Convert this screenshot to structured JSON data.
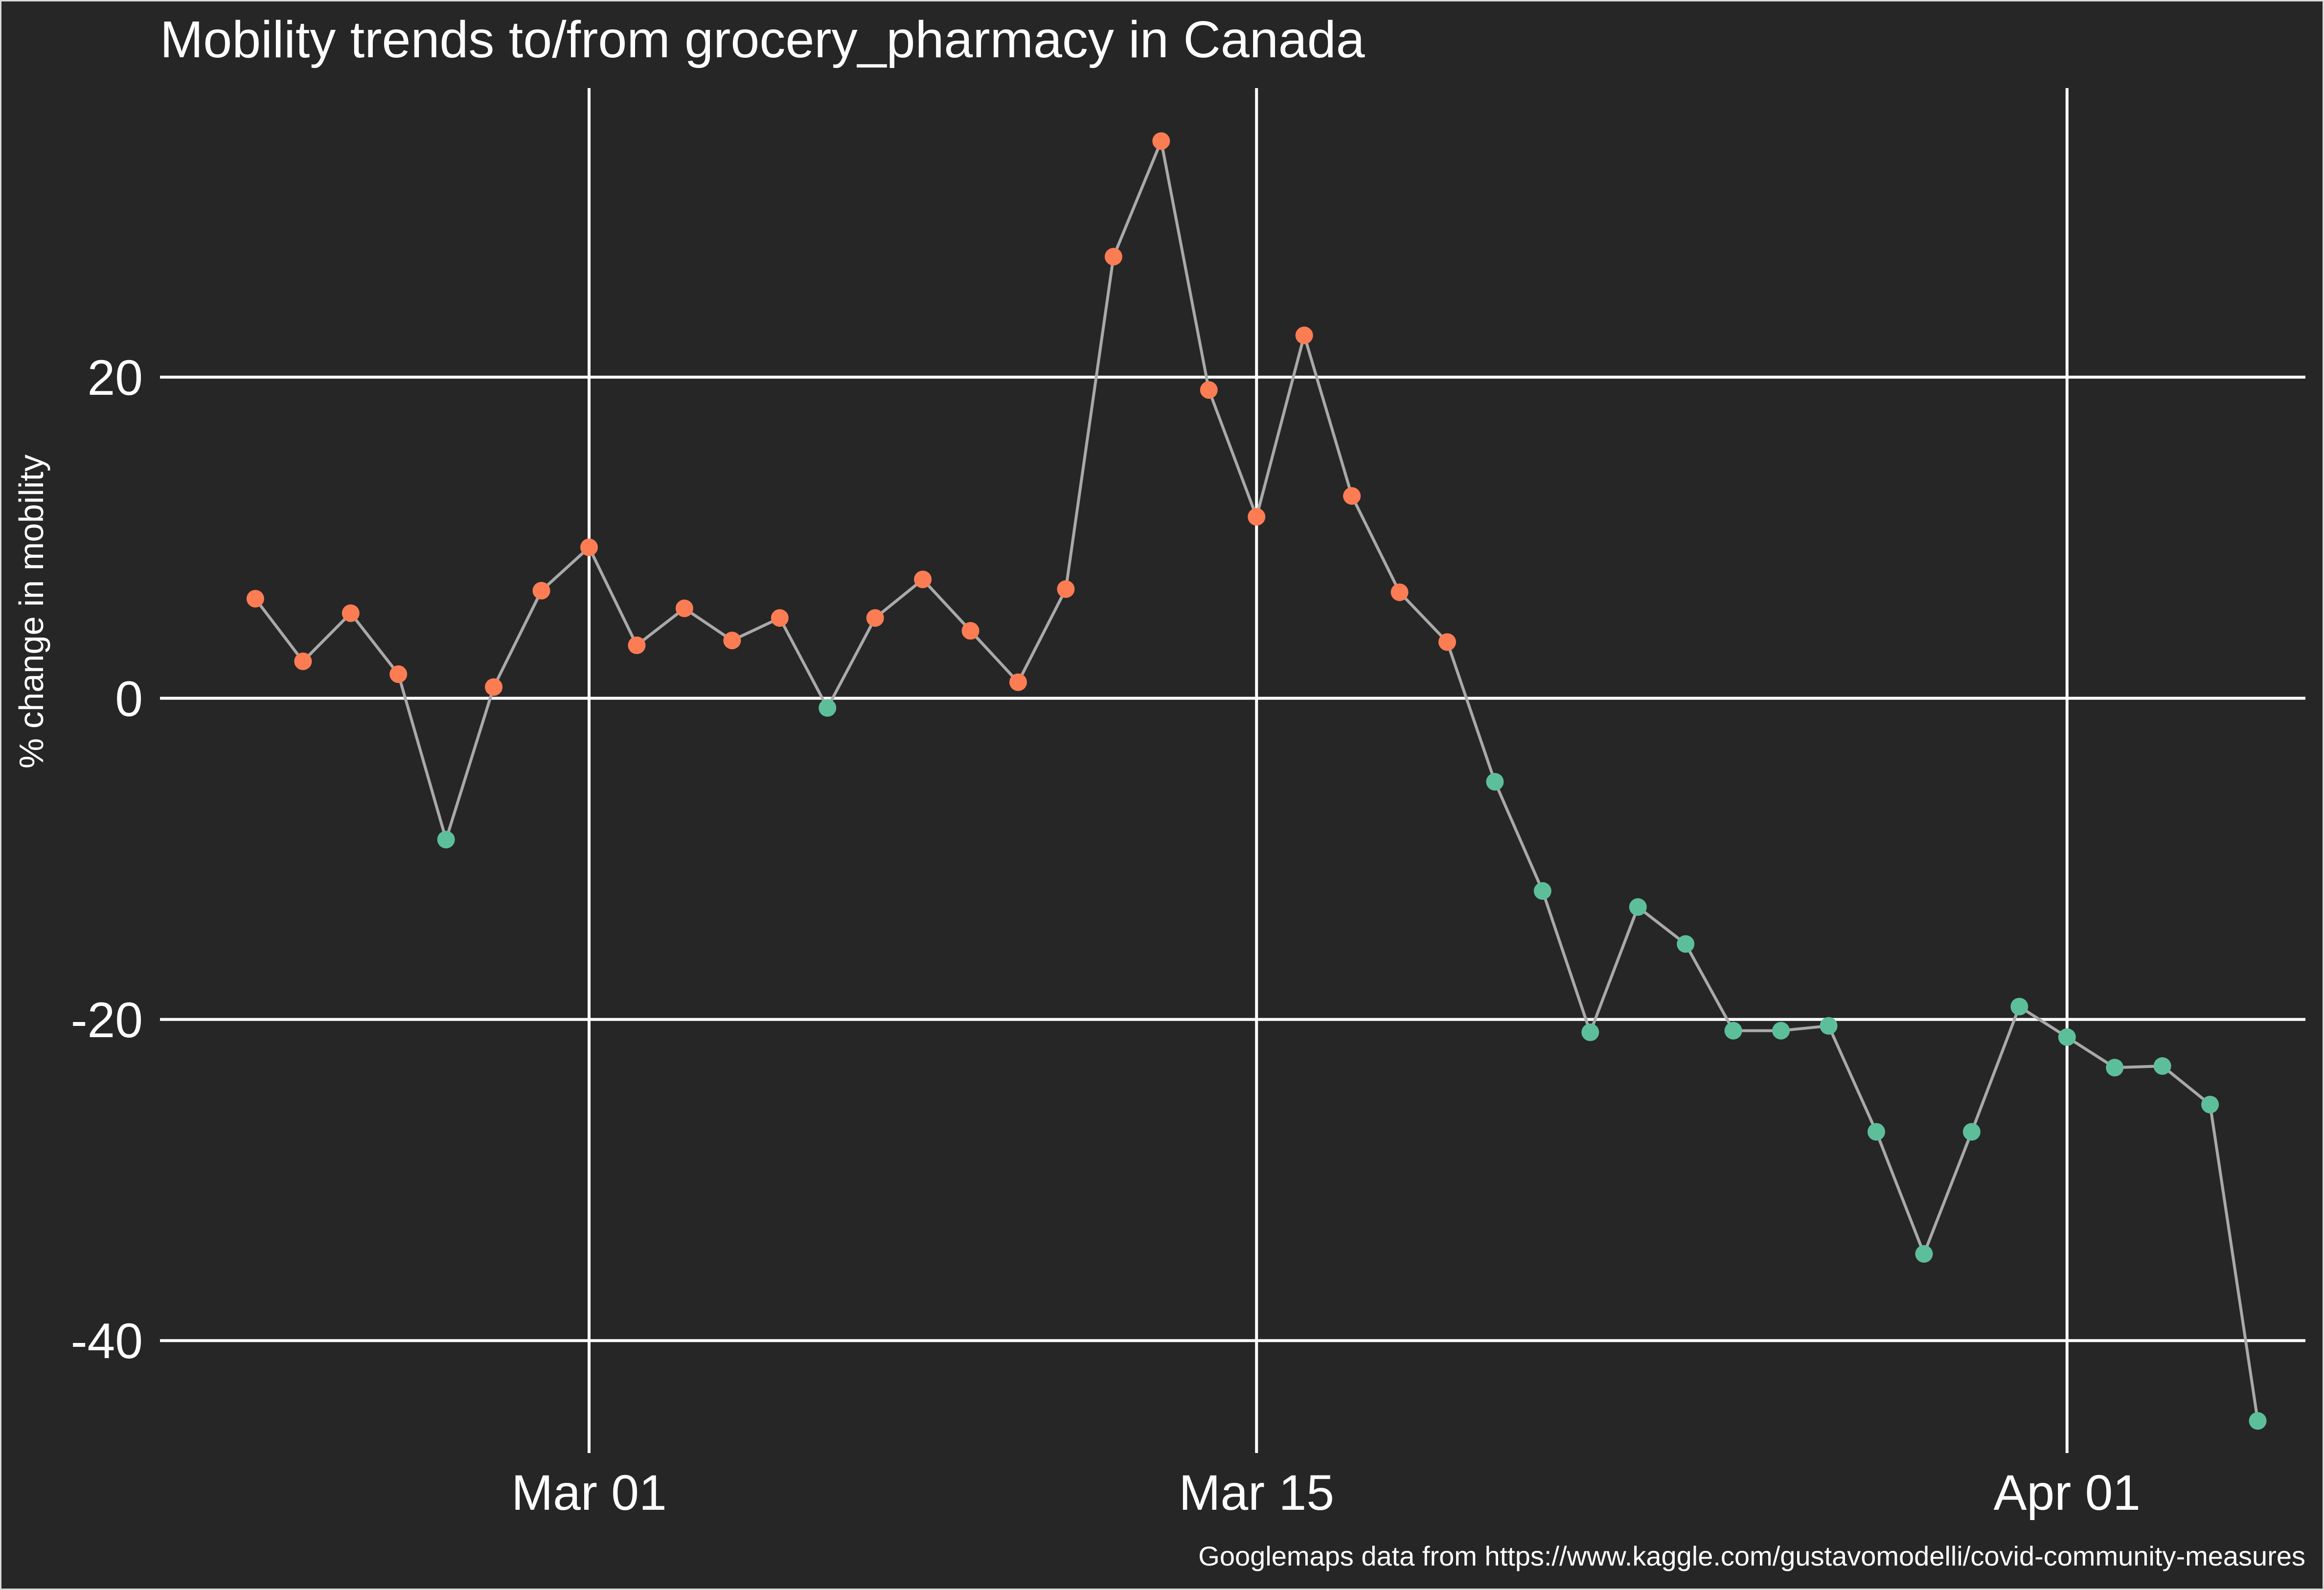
{
  "chart_data": {
    "type": "line",
    "title": "Mobility trends to/from grocery_pharmacy in Canada",
    "ylabel": "% change in mobility",
    "xlabel": "",
    "caption": "Googlemaps data from https://www.kaggle.com/gustavomodelli/covid-community-measures",
    "ylim": [
      -47,
      38
    ],
    "xlim": [
      "2020-02-21",
      "2020-04-06"
    ],
    "x_ticks": [
      {
        "date": "2020-03-01",
        "label": "Mar 01"
      },
      {
        "date": "2020-03-15",
        "label": "Mar 15"
      },
      {
        "date": "2020-04-01",
        "label": "Apr 01"
      }
    ],
    "y_ticks": [
      {
        "value": 20,
        "label": "20"
      },
      {
        "value": 0,
        "label": "0"
      },
      {
        "value": -20,
        "label": "-20"
      },
      {
        "value": -40,
        "label": "-40"
      }
    ],
    "grid": true,
    "legend": "none",
    "colors": {
      "line": "#a9a9a9",
      "above": "#fc7c54",
      "below": "#5dbf9a",
      "background": "#262626",
      "grid": "#ffffff"
    },
    "x": [
      "2020-02-23",
      "2020-02-24",
      "2020-02-25",
      "2020-02-26",
      "2020-02-27",
      "2020-02-28",
      "2020-02-29",
      "2020-03-01",
      "2020-03-02",
      "2020-03-03",
      "2020-03-04",
      "2020-03-05",
      "2020-03-06",
      "2020-03-07",
      "2020-03-08",
      "2020-03-09",
      "2020-03-10",
      "2020-03-11",
      "2020-03-12",
      "2020-03-13",
      "2020-03-14",
      "2020-03-15",
      "2020-03-16",
      "2020-03-17",
      "2020-03-18",
      "2020-03-19",
      "2020-03-20",
      "2020-03-21",
      "2020-03-22",
      "2020-03-23",
      "2020-03-24",
      "2020-03-25",
      "2020-03-26",
      "2020-03-27",
      "2020-03-28",
      "2020-03-29",
      "2020-03-30",
      "2020-03-31",
      "2020-04-01",
      "2020-04-02",
      "2020-04-03",
      "2020-04-04",
      "2020-04-05"
    ],
    "series": [
      {
        "values": [
          6.2,
          2.3,
          5.3,
          1.5,
          -8.8,
          0.7,
          6.7,
          9.4,
          3.3,
          5.6,
          3.6,
          5.0,
          -0.6,
          5.0,
          7.4,
          4.2,
          1.0,
          6.8,
          27.5,
          34.7,
          19.2,
          11.3,
          22.6,
          12.6,
          6.6,
          3.5,
          -5.2,
          -12.0,
          -20.8,
          -13.0,
          -15.3,
          -20.7,
          -20.7,
          -20.4,
          -27.0,
          -34.6,
          -27.0,
          -19.2,
          -21.1,
          -23.0,
          -22.9,
          -25.3,
          -45.0
        ]
      }
    ]
  }
}
